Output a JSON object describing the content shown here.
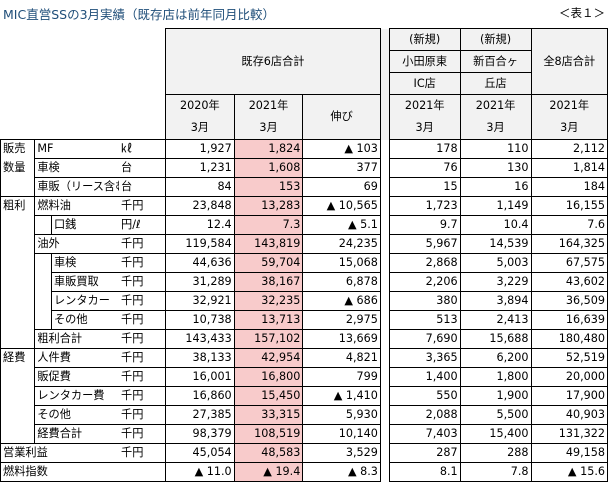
{
  "title": "MIC直営SSの3月実績（既存店は前年同月比較）",
  "table_label": "＜表１＞",
  "header": {
    "existing_group": "既存6店合計",
    "new1": [
      "(新規)",
      "小田原東",
      "IC店"
    ],
    "new2": [
      "(新規)",
      "新百合ヶ",
      "丘店"
    ],
    "total8": "全8店合計",
    "col2020": [
      "2020年",
      "3月"
    ],
    "col2021": [
      "2021年",
      "3月"
    ],
    "growth": "伸び",
    "col_o": [
      "2021年",
      "3月"
    ],
    "col_s": [
      "2021年",
      "3月"
    ],
    "col_t": [
      "2021年",
      "3月"
    ]
  },
  "rows": [
    {
      "cat": "販売",
      "label": "MF",
      "unit": "㎘",
      "v2020": "1,927",
      "v2021": "1,824",
      "growth": "▲ 103",
      "odawara": "178",
      "shinyuri": "110",
      "total": "2,112"
    },
    {
      "cat": "数量",
      "label": "車検",
      "unit": "台",
      "v2020": "1,231",
      "v2021": "1,608",
      "growth": "377",
      "odawara": "76",
      "shinyuri": "130",
      "total": "1,814"
    },
    {
      "cat": "",
      "label": "車販（リース含む）",
      "unit": "台",
      "v2020": "84",
      "v2021": "153",
      "growth": "69",
      "odawara": "15",
      "shinyuri": "16",
      "total": "184"
    },
    {
      "cat": "粗利",
      "label": "燃料油",
      "unit": "千円",
      "v2020": "23,848",
      "v2021": "13,283",
      "growth": "▲ 10,565",
      "odawara": "1,723",
      "shinyuri": "1,149",
      "total": "16,155"
    },
    {
      "cat": "",
      "label": "口銭",
      "unit": "円/ℓ",
      "v2020": "12.4",
      "v2021": "7.3",
      "growth": "▲ 5.1",
      "odawara": "9.7",
      "shinyuri": "10.4",
      "total": "7.6"
    },
    {
      "cat": "",
      "label": "油外",
      "unit": "千円",
      "v2020": "119,584",
      "v2021": "143,819",
      "growth": "24,235",
      "odawara": "5,967",
      "shinyuri": "14,539",
      "total": "164,325"
    },
    {
      "cat": "",
      "label": "車検",
      "unit": "千円",
      "v2020": "44,636",
      "v2021": "59,704",
      "growth": "15,068",
      "odawara": "2,868",
      "shinyuri": "5,003",
      "total": "67,575"
    },
    {
      "cat": "",
      "label": "車販買取",
      "unit": "千円",
      "v2020": "31,289",
      "v2021": "38,167",
      "growth": "6,878",
      "odawara": "2,206",
      "shinyuri": "3,229",
      "total": "43,602"
    },
    {
      "cat": "",
      "label": "レンタカー",
      "unit": "千円",
      "v2020": "32,921",
      "v2021": "32,235",
      "growth": "▲ 686",
      "odawara": "380",
      "shinyuri": "3,894",
      "total": "36,509"
    },
    {
      "cat": "",
      "label": "その他",
      "unit": "千円",
      "v2020": "10,738",
      "v2021": "13,713",
      "growth": "2,975",
      "odawara": "513",
      "shinyuri": "2,413",
      "total": "16,639"
    },
    {
      "cat": "",
      "label": "粗利合計",
      "unit": "千円",
      "v2020": "143,433",
      "v2021": "157,102",
      "growth": "13,669",
      "odawara": "7,690",
      "shinyuri": "15,688",
      "total": "180,480"
    },
    {
      "cat": "経費",
      "label": "人件費",
      "unit": "千円",
      "v2020": "38,133",
      "v2021": "42,954",
      "growth": "4,821",
      "odawara": "3,365",
      "shinyuri": "6,200",
      "total": "52,519"
    },
    {
      "cat": "",
      "label": "販促費",
      "unit": "千円",
      "v2020": "16,001",
      "v2021": "16,800",
      "growth": "799",
      "odawara": "1,400",
      "shinyuri": "1,800",
      "total": "20,000"
    },
    {
      "cat": "",
      "label": "レンタカー費",
      "unit": "千円",
      "v2020": "16,860",
      "v2021": "15,450",
      "growth": "▲ 1,410",
      "odawara": "550",
      "shinyuri": "1,900",
      "total": "17,900"
    },
    {
      "cat": "",
      "label": "その他",
      "unit": "千円",
      "v2020": "27,385",
      "v2021": "33,315",
      "growth": "5,930",
      "odawara": "2,088",
      "shinyuri": "5,500",
      "total": "40,903"
    },
    {
      "cat": "",
      "label": "経費合計",
      "unit": "千円",
      "v2020": "98,379",
      "v2021": "108,519",
      "growth": "10,140",
      "odawara": "7,403",
      "shinyuri": "15,400",
      "total": "131,322"
    },
    {
      "cat": "営業利益",
      "label": "",
      "unit": "千円",
      "v2020": "45,054",
      "v2021": "48,583",
      "growth": "3,529",
      "odawara": "287",
      "shinyuri": "288",
      "total": "49,158"
    },
    {
      "cat": "燃料指数",
      "label": "",
      "unit": "",
      "v2020": "▲ 11.0",
      "v2021": "▲ 19.4",
      "growth": "▲ 8.3",
      "odawara": "8.1",
      "shinyuri": "7.8",
      "total": "▲ 15.6"
    }
  ]
}
